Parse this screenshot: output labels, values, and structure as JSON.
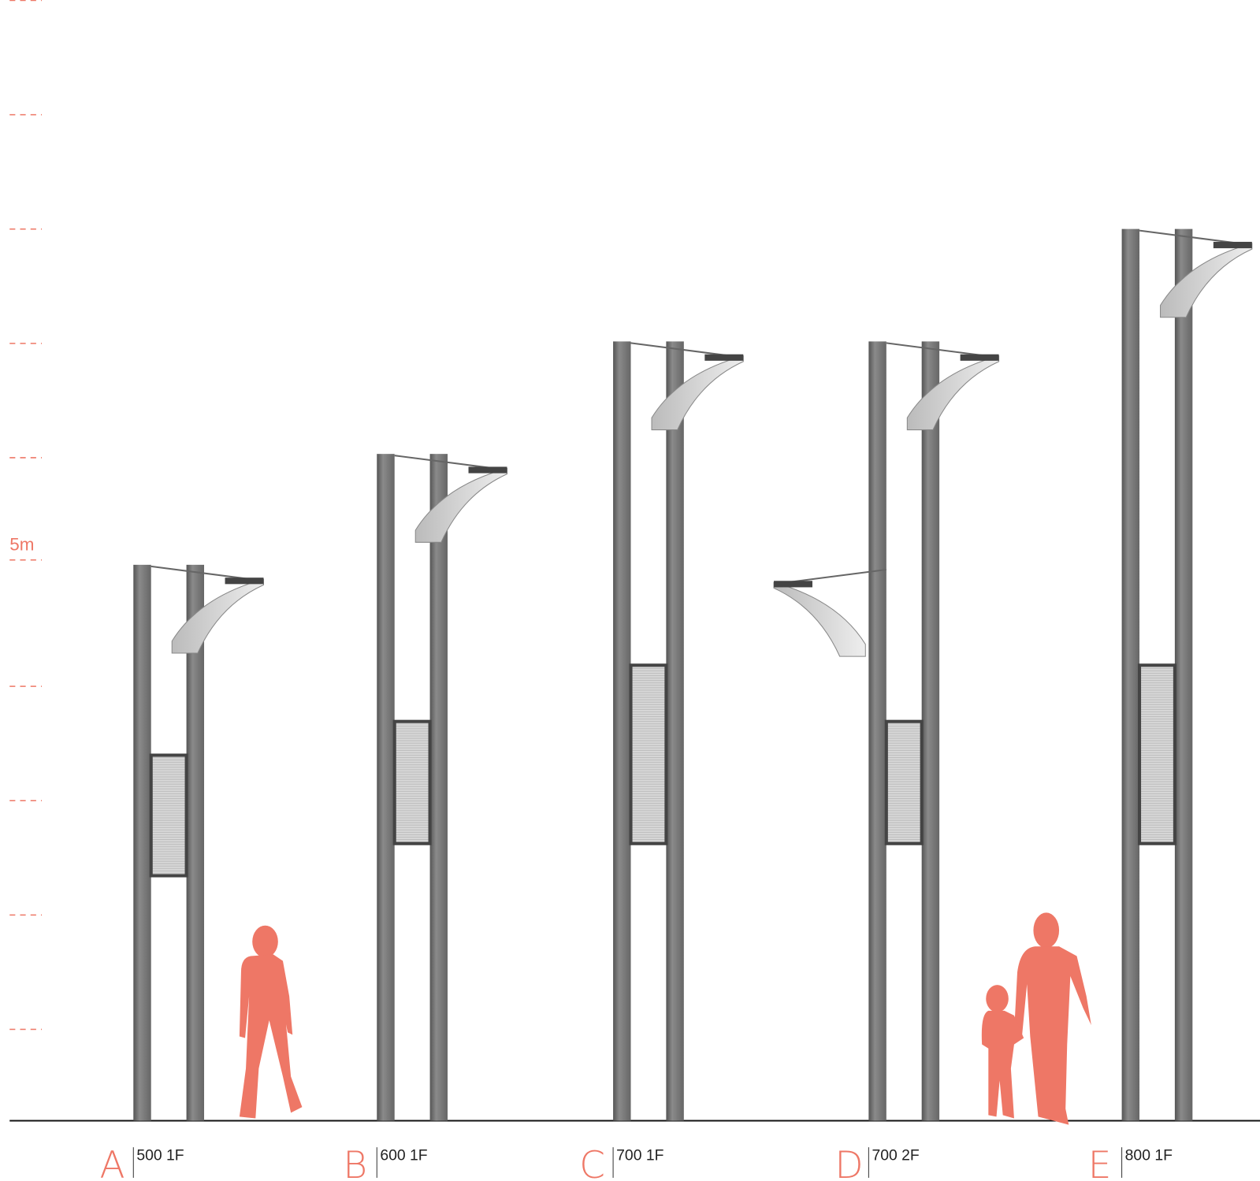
{
  "scale": {
    "label": "5m"
  },
  "poles": [
    {
      "letter": "A",
      "label": "500 1F"
    },
    {
      "letter": "B",
      "label": "600 1F"
    },
    {
      "letter": "C",
      "label": "700 1F"
    },
    {
      "letter": "D",
      "label": "700 2F"
    },
    {
      "letter": "E",
      "label": "800 1F"
    }
  ]
}
